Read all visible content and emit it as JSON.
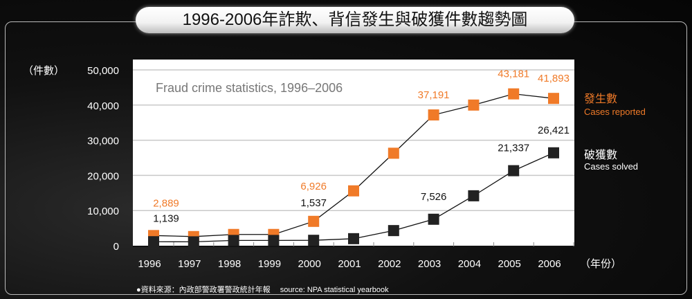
{
  "chart_data": {
    "type": "line",
    "title": "1996-2006年詐欺、背信發生與破獲件數趨勢圖",
    "subtitle": "Fraud crime statistics, 1996–2006",
    "ylabel": "（件數）",
    "xlabel": "（年份）",
    "ylim": [
      0,
      50000
    ],
    "yticks": [
      "0",
      "10,000",
      "20,000",
      "30,000",
      "40,000",
      "50,000"
    ],
    "categories": [
      "1996",
      "1997",
      "1998",
      "1999",
      "2000",
      "2001",
      "2002",
      "2003",
      "2004",
      "2005",
      "2006"
    ],
    "series": [
      {
        "name": "發生數",
        "name_en": "Cases reported",
        "color": "#f07a28",
        "values": [
          2889,
          2600,
          3200,
          3200,
          6926,
          15600,
          26300,
          37191,
          40000,
          43181,
          41893
        ],
        "labels": {
          "0": "2,889",
          "4": "6,926",
          "7": "37,191",
          "9": "43,181",
          "10": "41,893"
        }
      },
      {
        "name": "破獲數",
        "name_en": "Cases solved",
        "color": "#222222",
        "values": [
          1139,
          1100,
          1500,
          1500,
          1537,
          2000,
          4300,
          7526,
          14200,
          21337,
          26421
        ],
        "labels": {
          "0": "1,139",
          "4": "1,537",
          "7": "7,526",
          "9": "21,337",
          "10": "26,421"
        }
      }
    ],
    "grid": true,
    "legend": "right",
    "source": "●資料來源：內政部警政署警政統計年報　 source: NPA statistical yearbook"
  }
}
